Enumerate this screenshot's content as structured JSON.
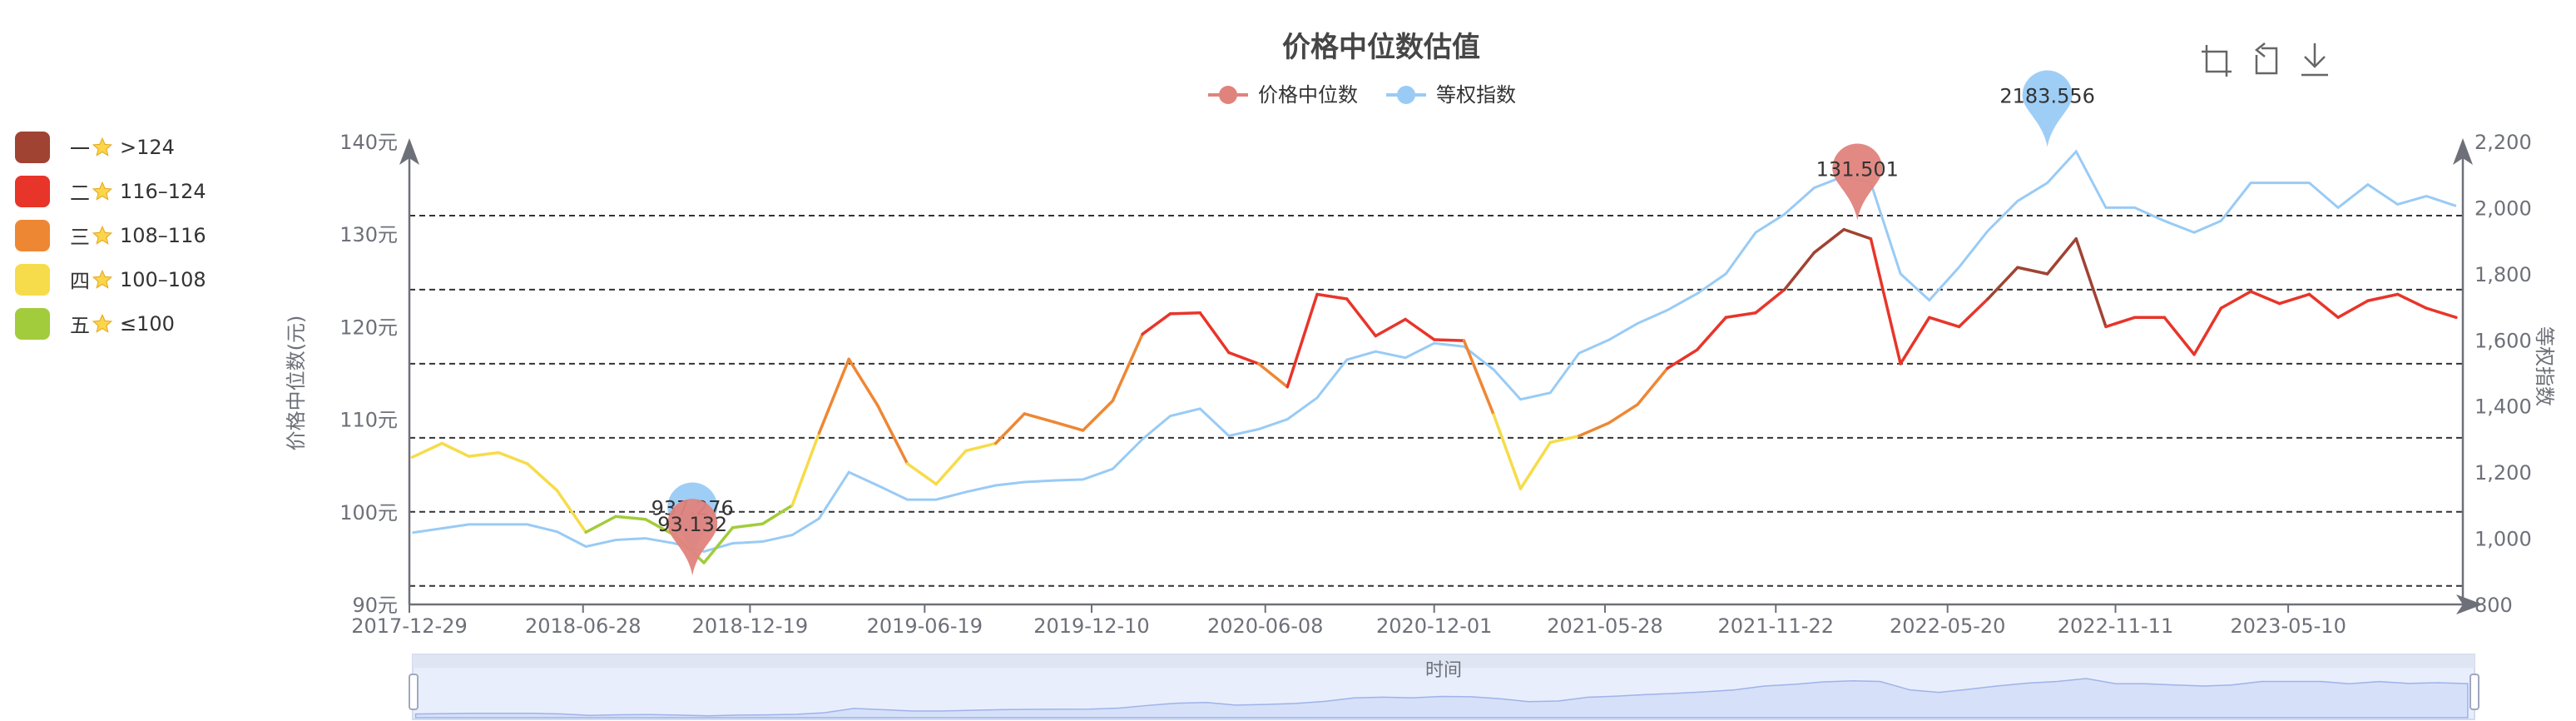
{
  "title": "价格中位数估值",
  "legend": [
    {
      "name": "价格中位数",
      "color": "#e0837d"
    },
    {
      "name": "等权指数",
      "color": "#99cbf5"
    }
  ],
  "toolbox": [
    {
      "name": "data-zoom-icon"
    },
    {
      "name": "restore-icon"
    },
    {
      "name": "download-icon"
    }
  ],
  "side_legend": [
    {
      "rank": "一",
      "range": ">124",
      "color": "#a04332"
    },
    {
      "rank": "二",
      "range": "116–124",
      "color": "#e8352a"
    },
    {
      "rank": "三",
      "range": "108–116",
      "color": "#ee8734"
    },
    {
      "rank": "四",
      "range": "100–108",
      "color": "#f6dc4a"
    },
    {
      "rank": "五",
      "range": "≤100",
      "color": "#a2cc3c"
    }
  ],
  "chart_data": {
    "type": "line",
    "title": "价格中位数估值",
    "xlabel": "时间",
    "ylabel_left": "价格中位数(元)",
    "ylabel_right": "等权指数",
    "ylim_left": [
      90,
      140
    ],
    "ylim_right": [
      800,
      2200
    ],
    "yticks_left": [
      "90元",
      "100元",
      "110元",
      "120元",
      "130元",
      "140元"
    ],
    "yticks_right": [
      "800",
      "1,000",
      "1,200",
      "1,400",
      "1,600",
      "1,800",
      "2,000",
      "2,200"
    ],
    "xticks": [
      "2017-12-29",
      "2018-06-28",
      "2018-12-19",
      "2019-06-19",
      "2019-12-10",
      "2020-06-08",
      "2020-12-01",
      "2021-05-28",
      "2021-11-22",
      "2022-05-20",
      "2022-11-11",
      "2023-05-10"
    ],
    "threshold_lines": [
      92,
      100,
      108,
      116,
      124,
      132
    ],
    "color_bands": [
      {
        "min": 124,
        "color": "#a04332"
      },
      {
        "min": 116,
        "max": 124,
        "color": "#e8352a"
      },
      {
        "min": 108,
        "max": 116,
        "color": "#ee8734"
      },
      {
        "min": 100,
        "max": 108,
        "color": "#f6dc4a"
      },
      {
        "max": 100,
        "color": "#a2cc3c"
      }
    ],
    "x": [
      "2018-01",
      "2018-02",
      "2018-03",
      "2018-04",
      "2018-05",
      "2018-06",
      "2018-07",
      "2018-08",
      "2018-09",
      "2018-10",
      "2018-11",
      "2018-12",
      "2019-01",
      "2019-02",
      "2019-03",
      "2019-04",
      "2019-05",
      "2019-06",
      "2019-07",
      "2019-08",
      "2019-09",
      "2019-10",
      "2019-11",
      "2019-12",
      "2020-01",
      "2020-02",
      "2020-03",
      "2020-04",
      "2020-05",
      "2020-06",
      "2020-07",
      "2020-08",
      "2020-09",
      "2020-10",
      "2020-11",
      "2020-12",
      "2021-01",
      "2021-02",
      "2021-03",
      "2021-04",
      "2021-05",
      "2021-06",
      "2021-07",
      "2021-08",
      "2021-09",
      "2021-10",
      "2021-11",
      "2021-12",
      "2022-01",
      "2022-02",
      "2022-03",
      "2022-04",
      "2022-05",
      "2022-06",
      "2022-07",
      "2022-08",
      "2022-09",
      "2022-10",
      "2022-11",
      "2022-12",
      "2023-01",
      "2023-02",
      "2023-03",
      "2023-04",
      "2023-05",
      "2023-06",
      "2023-07",
      "2023-08",
      "2023-09",
      "2023-10",
      "2023-11"
    ],
    "series": [
      {
        "name": "价格中位数",
        "axis": "left",
        "values": [
          105.9,
          107.4,
          106,
          106.4,
          105.2,
          102.3,
          97.8,
          99.5,
          99.2,
          97.5,
          94.5,
          98.3,
          98.7,
          100.7,
          108.5,
          116.5,
          111.5,
          105.2,
          103,
          106.6,
          107.4,
          110.6,
          109.7,
          108.8,
          112,
          119.2,
          121.4,
          121.5,
          117.2,
          116,
          113.5,
          123.5,
          123,
          119,
          120.8,
          118.6,
          118.5,
          110.5,
          102.5,
          107.5,
          108.2,
          109.6,
          111.6,
          115.5,
          117.5,
          121,
          121.5,
          124,
          128,
          130.5,
          129.5,
          116,
          121,
          120,
          123,
          126.4,
          125.7,
          129.5,
          120,
          121,
          121,
          117,
          122,
          123.8,
          122.5,
          123.5,
          121,
          122.8,
          123.5,
          122,
          121
        ]
      },
      {
        "name": "等权指数",
        "axis": "right",
        "values": [
          1017,
          1030,
          1042,
          1042,
          1042,
          1020,
          975,
          995,
          1000,
          985,
          960,
          985,
          990,
          1010,
          1060,
          1200,
          1160,
          1117,
          1117,
          1140,
          1160,
          1170,
          1175,
          1178,
          1210,
          1300,
          1370,
          1392,
          1310,
          1330,
          1360,
          1425,
          1540,
          1565,
          1546,
          1590,
          1580,
          1510,
          1420,
          1440,
          1560,
          1600,
          1650,
          1690,
          1740,
          1800,
          1925,
          1980,
          2060,
          2095,
          2075,
          1800,
          1720,
          1820,
          1930,
          2020,
          2075,
          2170,
          2000,
          2000,
          1960,
          1925,
          1960,
          2075,
          2075,
          2075,
          2000,
          2070,
          2010,
          2035,
          2005
        ]
      }
    ],
    "mark_points": [
      {
        "series": "价格中位数",
        "label": "131.501",
        "x": "2022-02-15",
        "value": 131.501,
        "type": "max"
      },
      {
        "series": "等权指数",
        "label": "2183.556",
        "x": "2022-09-01",
        "value": 2183.556,
        "type": "max"
      },
      {
        "series": "等权指数",
        "label": "937.276",
        "x": "2018-10-20",
        "value": 937.276,
        "type": "min"
      },
      {
        "series": "价格中位数",
        "label": "93.132",
        "x": "2018-10-20",
        "value": 93.132,
        "type": "min"
      }
    ],
    "legend_position": "top",
    "grid": "dashed threshold lines"
  },
  "datazoom": {
    "label": "时间",
    "start_percent": 0,
    "end_percent": 100
  }
}
